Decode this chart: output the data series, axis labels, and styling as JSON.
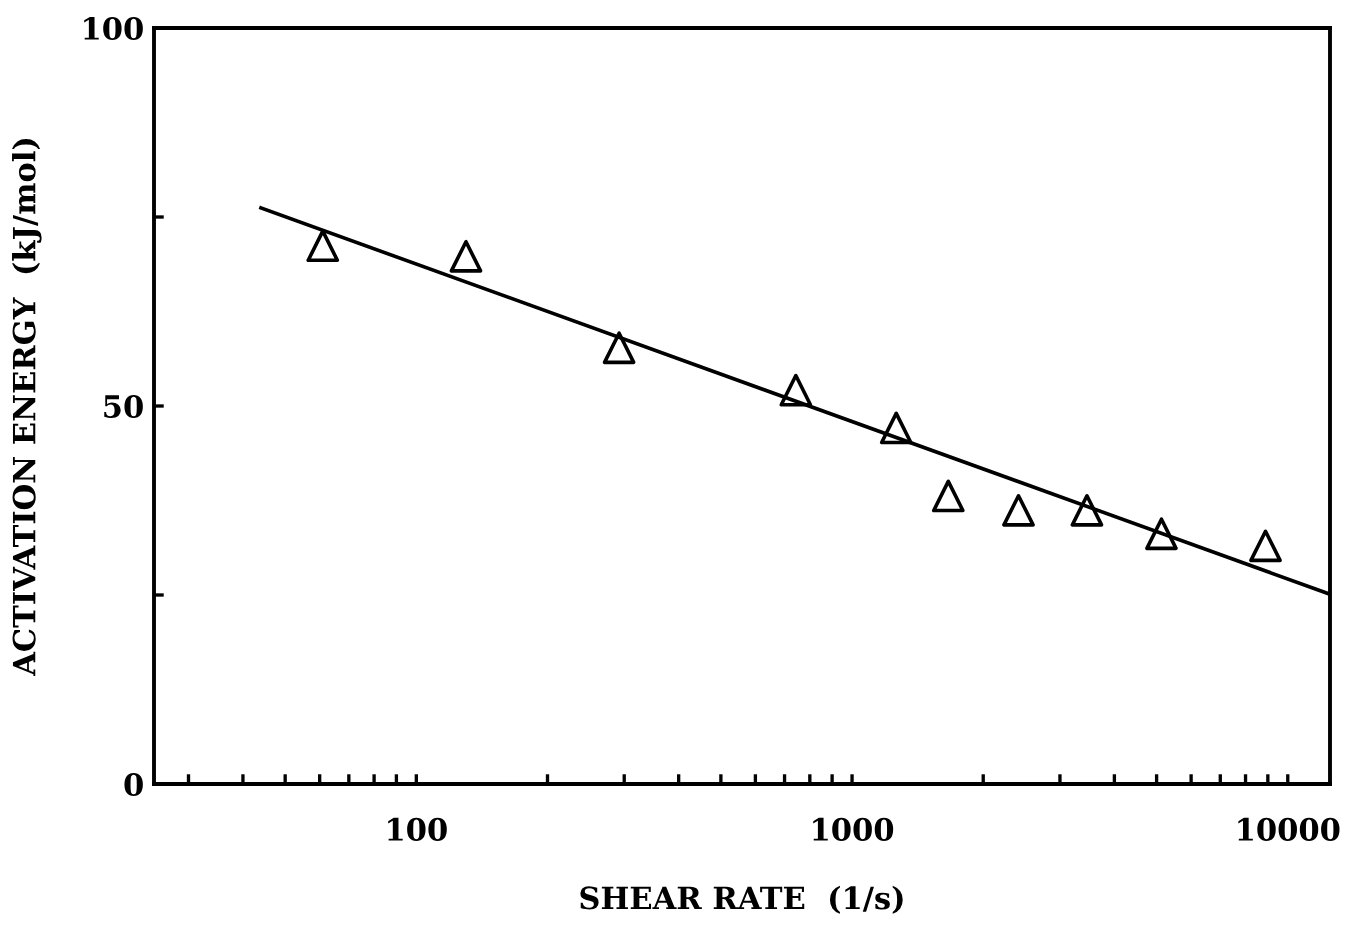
{
  "chart_data": {
    "type": "scatter",
    "xlabel": "SHEAR RATE  (1/s)",
    "ylabel": "ACTIVATION ENERGY  (kJ/mol)",
    "log": "x",
    "marker": "triangle",
    "grid": false,
    "legend": false,
    "xlim": [
      25,
      12500
    ],
    "ylim": [
      0,
      100
    ],
    "xticks": [
      {
        "value": 30,
        "label": null
      },
      {
        "value": 40,
        "label": null
      },
      {
        "value": 50,
        "label": null
      },
      {
        "value": 60,
        "label": null
      },
      {
        "value": 70,
        "label": null
      },
      {
        "value": 80,
        "label": null
      },
      {
        "value": 90,
        "label": null
      },
      100,
      {
        "value": 200,
        "label": null
      },
      {
        "value": 300,
        "label": null
      },
      {
        "value": 400,
        "label": null
      },
      {
        "value": 500,
        "label": null
      },
      {
        "value": 600,
        "label": null
      },
      {
        "value": 700,
        "label": null
      },
      {
        "value": 800,
        "label": null
      },
      {
        "value": 900,
        "label": null
      },
      1000,
      {
        "value": 2000,
        "label": null
      },
      {
        "value": 3000,
        "label": null
      },
      {
        "value": 4000,
        "label": null
      },
      {
        "value": 5000,
        "label": null
      },
      {
        "value": 6000,
        "label": null
      },
      {
        "value": 7000,
        "label": null
      },
      {
        "value": 8000,
        "label": null
      },
      {
        "value": 9000,
        "label": null
      },
      10000
    ],
    "yticks": [
      0,
      {
        "value": 25,
        "label": null
      },
      50,
      {
        "value": 75,
        "label": null
      },
      100
    ],
    "series": [
      {
        "color": "#000000",
        "x": [
          61,
          130,
          292,
          743,
          1263,
          1663,
          2410,
          3460,
          5130,
          8890
        ],
        "values": [
          71.2,
          69.8,
          57.7,
          52.1,
          47.1,
          38.1,
          36.2,
          36.2,
          33.1,
          31.5
        ]
      },
      {
        "type": "line",
        "color": "#000000",
        "marker": "none",
        "x": [
          44,
          12500
        ],
        "values": [
          76.2,
          25.1
        ]
      }
    ]
  }
}
